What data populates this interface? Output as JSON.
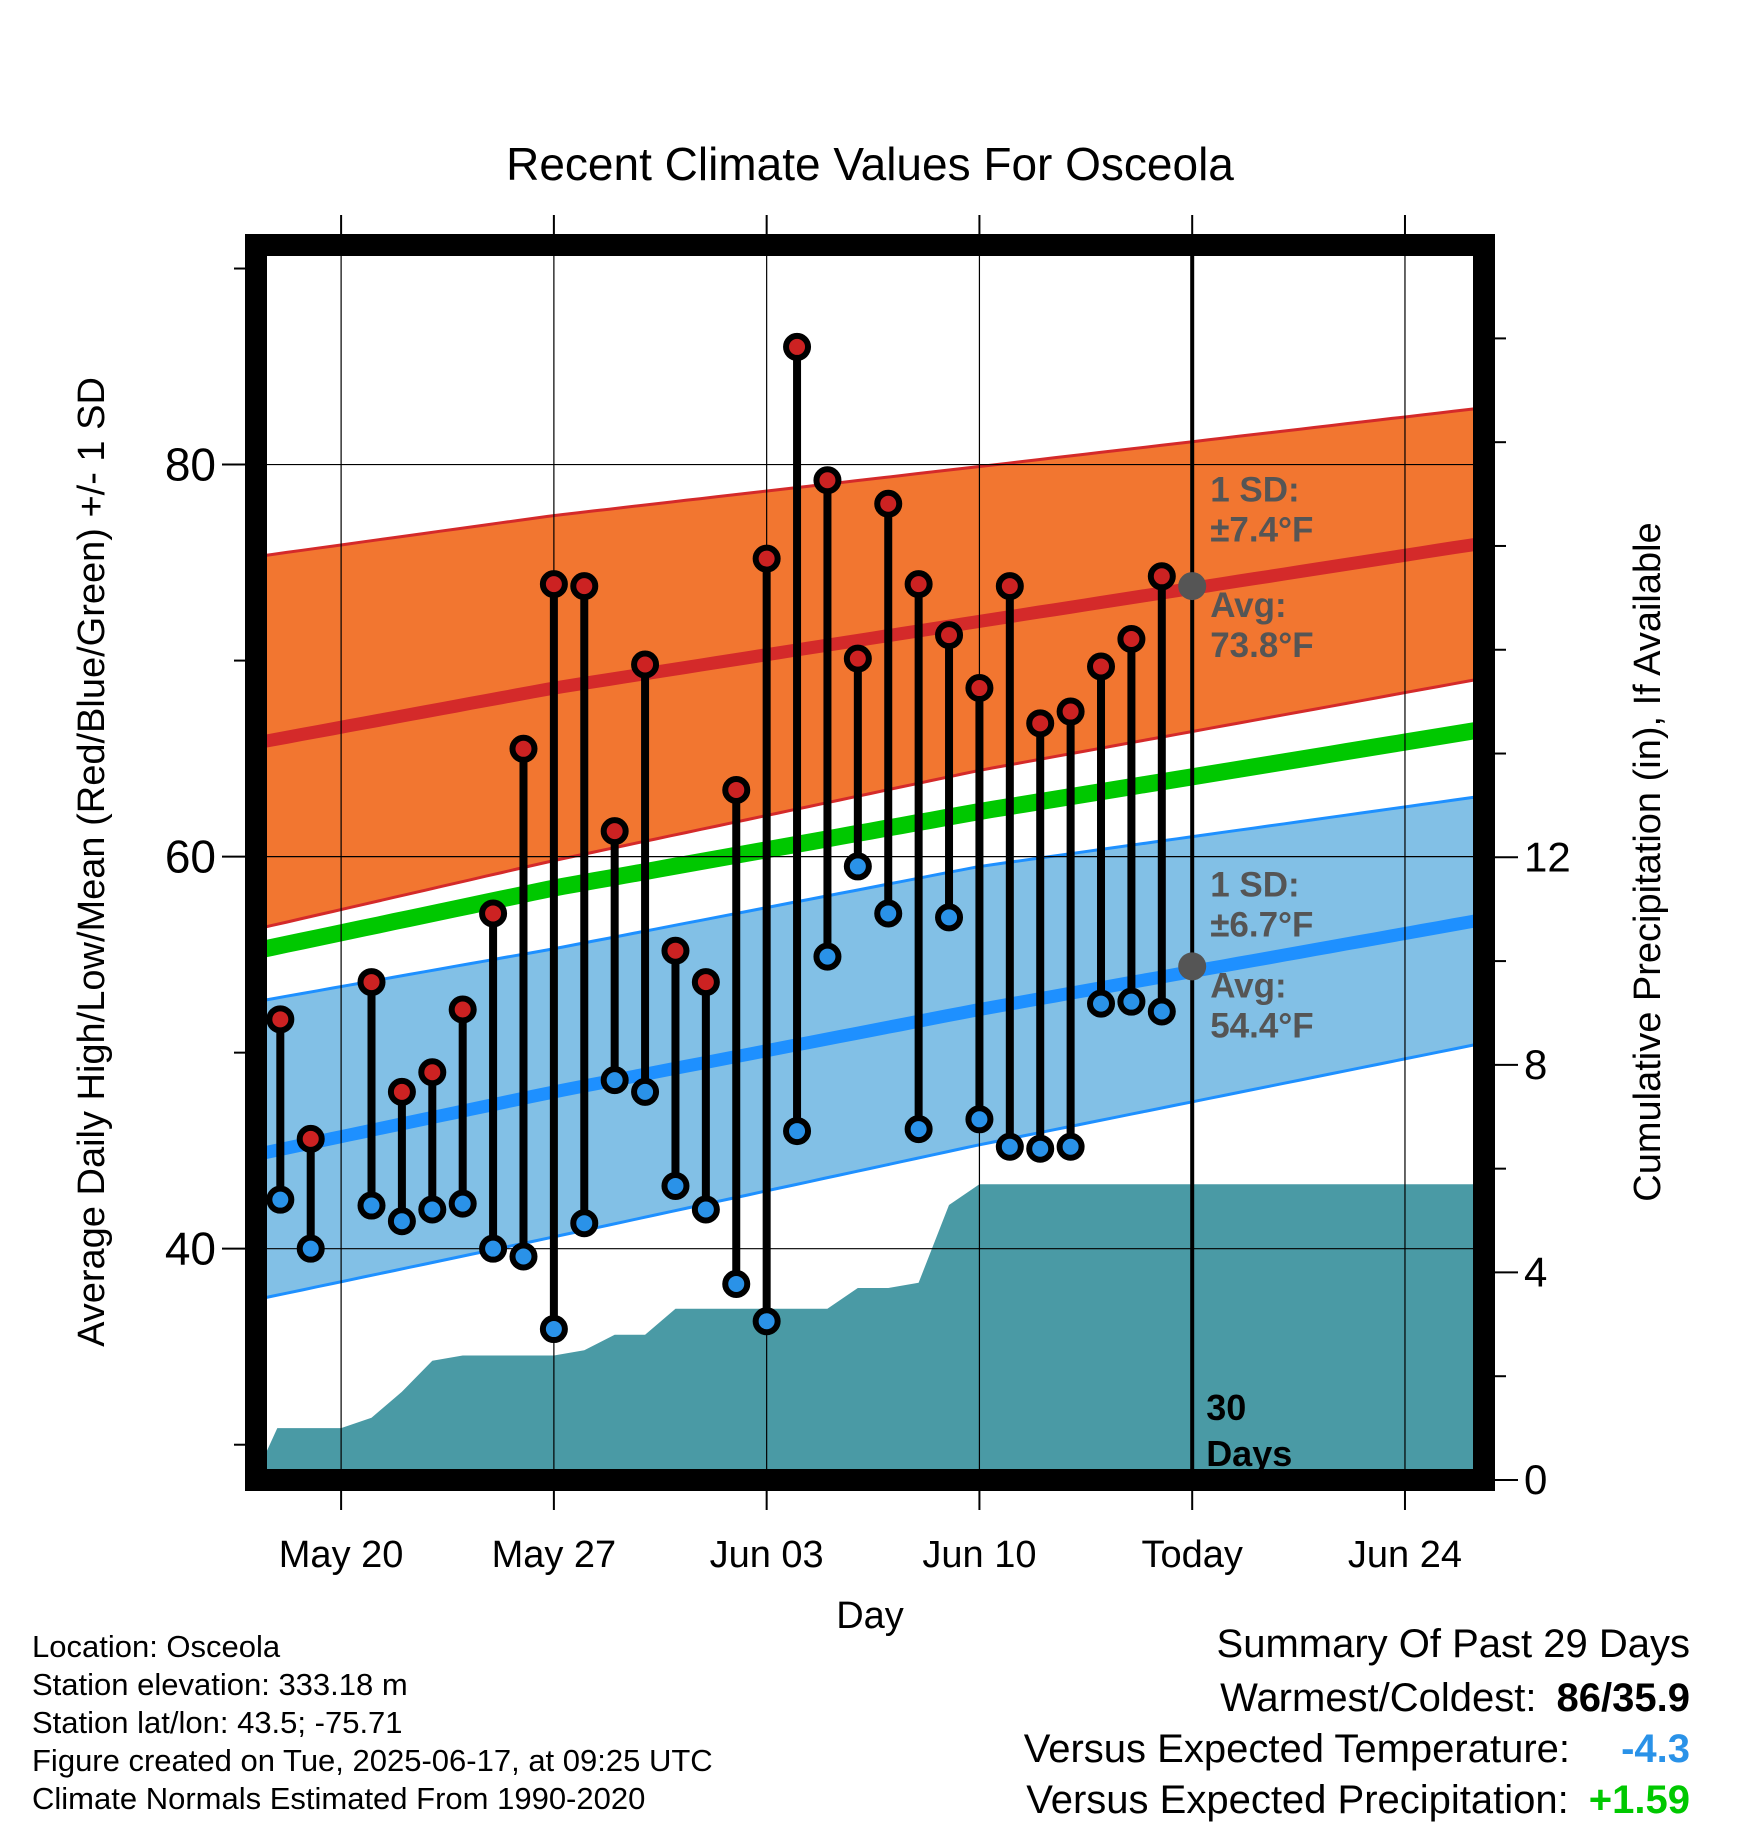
{
  "chart_data": {
    "type": "range-dot",
    "title": "Recent Climate Values For Osceola",
    "xlabel": "Day",
    "ylabel": "Average Daily High/Low/Mean (Red/Blue/Green) +/- 1 SD",
    "y2label": "Cumulative Precipitation (in), If Available",
    "xticks": [
      {
        "day": 20,
        "label": "May 20"
      },
      {
        "day": 27,
        "label": "May 27"
      },
      {
        "day": 34,
        "label": "Jun 03"
      },
      {
        "day": 41,
        "label": "Jun 10"
      },
      {
        "day": 48,
        "label": "Today"
      },
      {
        "day": 55,
        "label": "Jun 24"
      }
    ],
    "xlim": [
      17.2,
      57.6
    ],
    "ylim": [
      28.2,
      91.2
    ],
    "yticks": [
      40,
      60,
      80
    ],
    "y2lim": [
      0,
      23.8
    ],
    "y2ticks": [
      0,
      4,
      8,
      12
    ],
    "today_day": 48,
    "today_annotation": [
      "30",
      "Days"
    ],
    "normals": {
      "days": [
        17.2,
        27,
        41,
        57.6
      ],
      "high_avg": [
        65.8,
        68.6,
        72.0,
        76.0
      ],
      "high_upper": [
        75.3,
        77.4,
        79.9,
        82.9
      ],
      "high_lower": [
        56.3,
        59.8,
        64.4,
        69.1
      ],
      "mean": [
        55.2,
        58.4,
        62.3,
        66.5
      ],
      "low_avg": [
        44.8,
        48.0,
        52.2,
        56.8
      ],
      "low_upper": [
        52.6,
        55.3,
        59.5,
        63.1
      ],
      "low_lower": [
        37.4,
        40.6,
        45.3,
        50.5
      ]
    },
    "today_markers": [
      {
        "series": "high",
        "value": 73.8,
        "label_lines": [
          "Avg:",
          "73.8°F"
        ]
      },
      {
        "series": "low",
        "value": 54.4,
        "label_lines": [
          "Avg:",
          "54.4°F"
        ]
      }
    ],
    "sd_labels": [
      {
        "series": "high",
        "lines": [
          "1 SD:",
          "±7.4°F"
        ]
      },
      {
        "series": "low",
        "lines": [
          "1 SD:",
          "±6.7°F"
        ]
      }
    ],
    "daily": {
      "days": [
        18,
        19,
        21,
        22,
        23,
        24,
        25,
        26,
        27,
        28,
        29,
        30,
        31,
        32,
        33,
        34,
        35,
        36,
        37,
        38,
        39,
        40,
        41,
        42,
        43,
        44,
        45,
        46,
        47
      ],
      "high": [
        51.7,
        45.6,
        53.6,
        48.0,
        49.0,
        52.2,
        57.1,
        65.5,
        73.9,
        73.8,
        61.3,
        69.8,
        55.2,
        53.6,
        63.4,
        75.2,
        86.0,
        79.2,
        70.1,
        78.0,
        73.9,
        71.3,
        68.6,
        73.8,
        66.8,
        67.4,
        69.7,
        71.1,
        74.3
      ],
      "low": [
        42.5,
        40.0,
        42.2,
        41.4,
        42.0,
        42.3,
        40.0,
        39.6,
        35.9,
        41.3,
        48.6,
        48.0,
        43.2,
        42.0,
        38.2,
        36.3,
        46.0,
        54.9,
        59.5,
        57.1,
        46.1,
        56.9,
        46.6,
        45.2,
        45.1,
        45.2,
        52.5,
        52.6,
        52.1
      ]
    },
    "precip": {
      "days": [
        17.2,
        17.9,
        19,
        20,
        21,
        22,
        23,
        24,
        25,
        26,
        27,
        28,
        29,
        30,
        31,
        32,
        33,
        34,
        35,
        36,
        37,
        38,
        39,
        40,
        41,
        42,
        57.6
      ],
      "cumulative": [
        0.1,
        1.0,
        1.0,
        1.0,
        1.2,
        1.7,
        2.3,
        2.4,
        2.4,
        2.4,
        2.4,
        2.5,
        2.8,
        2.8,
        3.3,
        3.3,
        3.3,
        3.3,
        3.3,
        3.3,
        3.7,
        3.7,
        3.8,
        5.3,
        5.7,
        5.7,
        5.7
      ]
    },
    "colors": {
      "high_band": "#f27630",
      "high_line": "#d42a2a",
      "high_edge": "#d42a2a",
      "low_band": "#82c0e6",
      "low_line": "#1e90ff",
      "low_edge": "#1e90ff",
      "mean_line": "#00c800",
      "precip": "#4a9aa5",
      "high_dot": "#cc2222",
      "low_dot": "#2a92e8",
      "marker": "#555555",
      "annotation": "#555555"
    },
    "grid": true
  },
  "meta": {
    "location": "Location: Osceola",
    "elevation": "Station elevation: 333.18 m",
    "latlon": "Station lat/lon: 43.5; -75.71",
    "created": "Figure created on Tue, 2025-06-17, at 09:25 UTC",
    "normals": "Climate Normals Estimated From 1990-2020"
  },
  "summary": {
    "title": "Summary Of Past 29 Days",
    "warmest_label": "Warmest/Coldest:",
    "warmest_value": "86/35.9",
    "temp_label": "Versus Expected Temperature:",
    "temp_value": "-4.3",
    "temp_color": "#2a92e8",
    "precip_label": "Versus Expected Precipitation:",
    "precip_value": "+1.59",
    "precip_color": "#00c800"
  }
}
